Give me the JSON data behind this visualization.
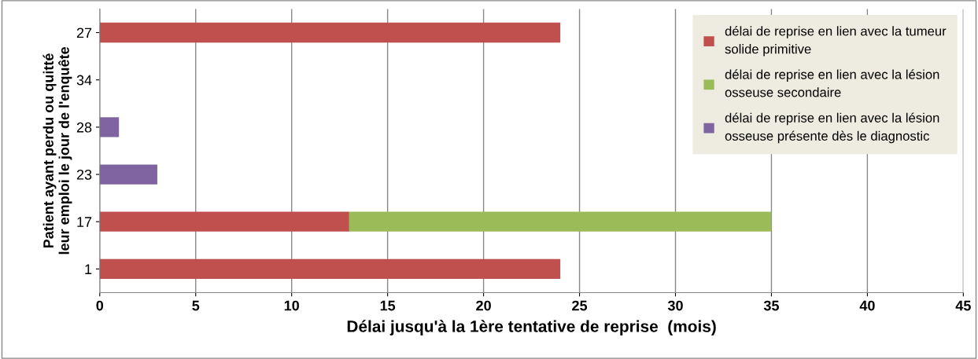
{
  "chart_data": {
    "type": "bar",
    "orientation": "horizontal",
    "stacked": true,
    "categories": [
      "27",
      "34",
      "28",
      "23",
      "17",
      "1"
    ],
    "series": [
      {
        "name": "délai de reprise en lien avec la tumeur\nsolide primitive",
        "color": "#c0504d",
        "values": [
          24,
          null,
          null,
          null,
          13,
          24
        ]
      },
      {
        "name": "délai de reprise en lien avec la lésion\nosseuse secondaire",
        "color": "#9bbb59",
        "values": [
          null,
          null,
          null,
          null,
          22,
          null
        ]
      },
      {
        "name": "délai de reprise en lien avec la lésion\nosseuse présente dès le diagnostic",
        "color": "#8064a2",
        "values": [
          null,
          null,
          1,
          3,
          null,
          null
        ]
      }
    ],
    "xlabel": "Délai jusqu'à la 1ère tentative de reprise  (mois)",
    "ylabel": "Patient ayant perdu ou quitté\nleur emploi le jour de l'enquête",
    "xlim": [
      0,
      45
    ],
    "xticks": [
      0,
      5,
      10,
      15,
      20,
      25,
      30,
      35,
      40,
      45
    ],
    "grid": "x",
    "legend": "top right"
  }
}
